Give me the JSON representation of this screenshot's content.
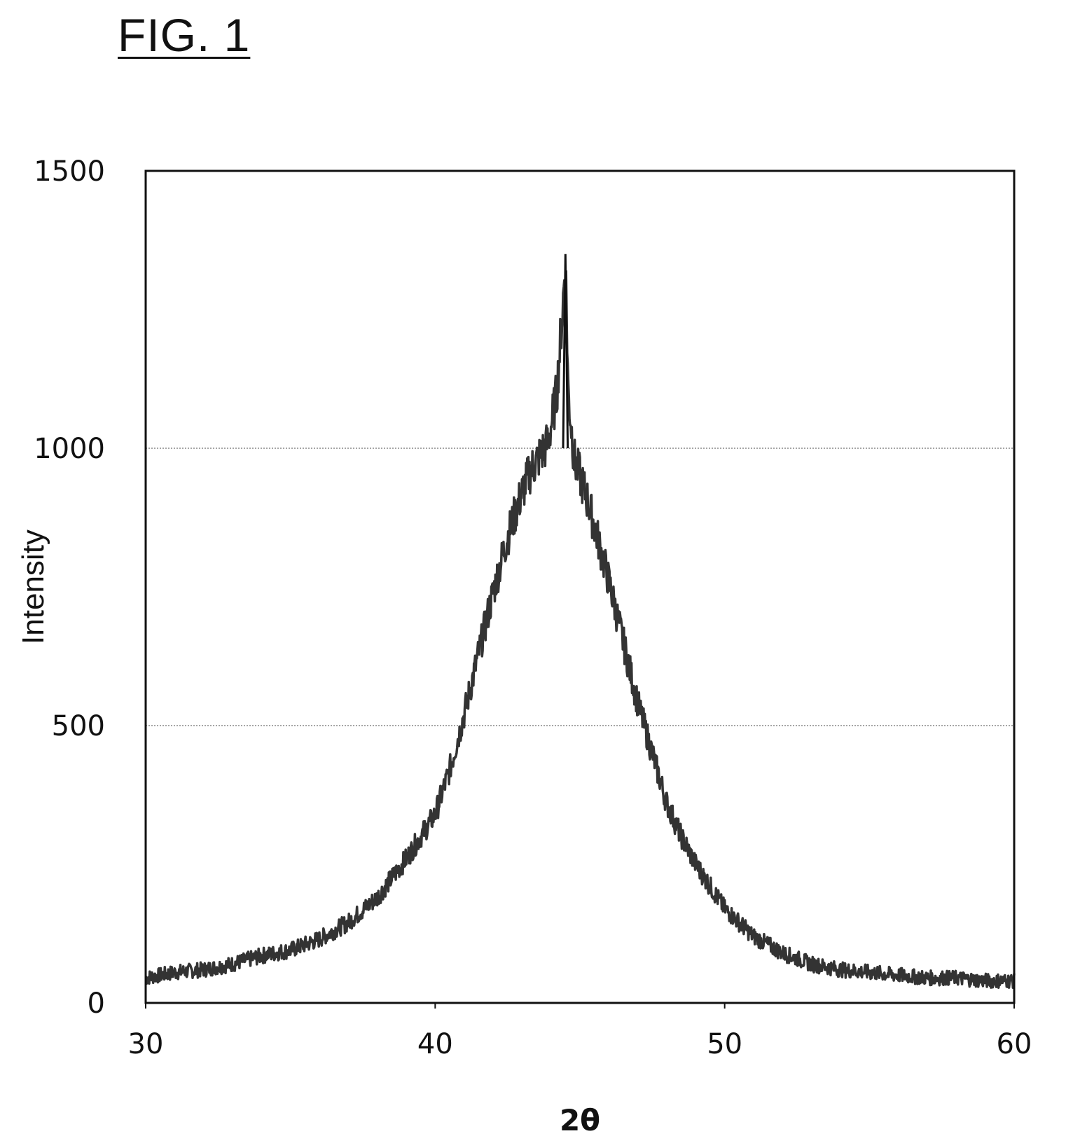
{
  "figure": {
    "label": "FIG. 1"
  },
  "chart_data": {
    "type": "line",
    "title": "",
    "xlabel": "2θ",
    "ylabel": "Intensity",
    "xlim": [
      30,
      60
    ],
    "ylim": [
      0,
      1500
    ],
    "x_ticks": [
      30,
      40,
      50,
      60
    ],
    "y_ticks": [
      0,
      500,
      1000,
      1500
    ],
    "grid": {
      "horizontal": [
        500,
        1000
      ],
      "vertical": false
    },
    "legend": "none",
    "line_color": "#333333",
    "series": [
      {
        "x": [
          30,
          31,
          32,
          33,
          34,
          35,
          36,
          37,
          38,
          39,
          40,
          40.5,
          41,
          41.5,
          42,
          42.5,
          43,
          43.3,
          43.6,
          43.9,
          44.2,
          44.4,
          44.5,
          44.6,
          44.8,
          45.0,
          45.3,
          45.6,
          46,
          46.5,
          47,
          47.5,
          48,
          48.5,
          49,
          50,
          51,
          52,
          53,
          54,
          55,
          56,
          57,
          58,
          59,
          60
        ],
        "y": [
          45,
          55,
          60,
          70,
          85,
          95,
          115,
          145,
          190,
          260,
          340,
          420,
          520,
          630,
          740,
          840,
          920,
          960,
          985,
          1010,
          1100,
          1250,
          1340,
          1100,
          980,
          950,
          900,
          840,
          760,
          650,
          540,
          450,
          360,
          300,
          250,
          170,
          120,
          90,
          70,
          60,
          55,
          50,
          45,
          45,
          40,
          40
        ]
      }
    ]
  }
}
